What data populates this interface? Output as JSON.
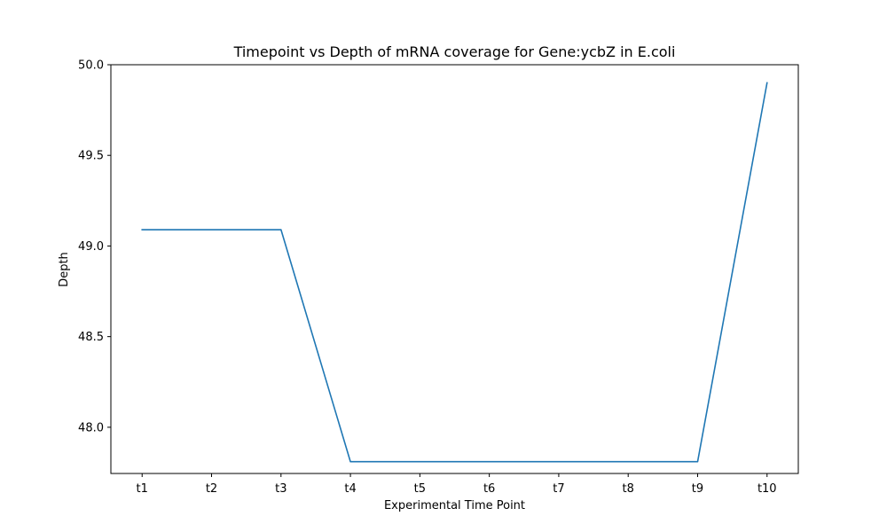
{
  "chart_data": {
    "type": "line",
    "title": "Timepoint vs Depth of mRNA coverage for Gene:ycbZ in E.coli",
    "xlabel": "Experimental Time Point",
    "ylabel": "Depth",
    "categories": [
      "t1",
      "t2",
      "t3",
      "t4",
      "t5",
      "t6",
      "t7",
      "t8",
      "t9",
      "t10"
    ],
    "series": [
      {
        "values": [
          49.09,
          49.09,
          49.09,
          47.81,
          47.81,
          47.81,
          47.81,
          47.81,
          47.81,
          49.9
        ]
      }
    ],
    "yticks": [
      "48.0",
      "48.5",
      "49.0",
      "49.5",
      "50.0"
    ],
    "ylim": [
      47.745,
      50.0
    ],
    "grid": false,
    "line_color": "#1f77b4"
  }
}
